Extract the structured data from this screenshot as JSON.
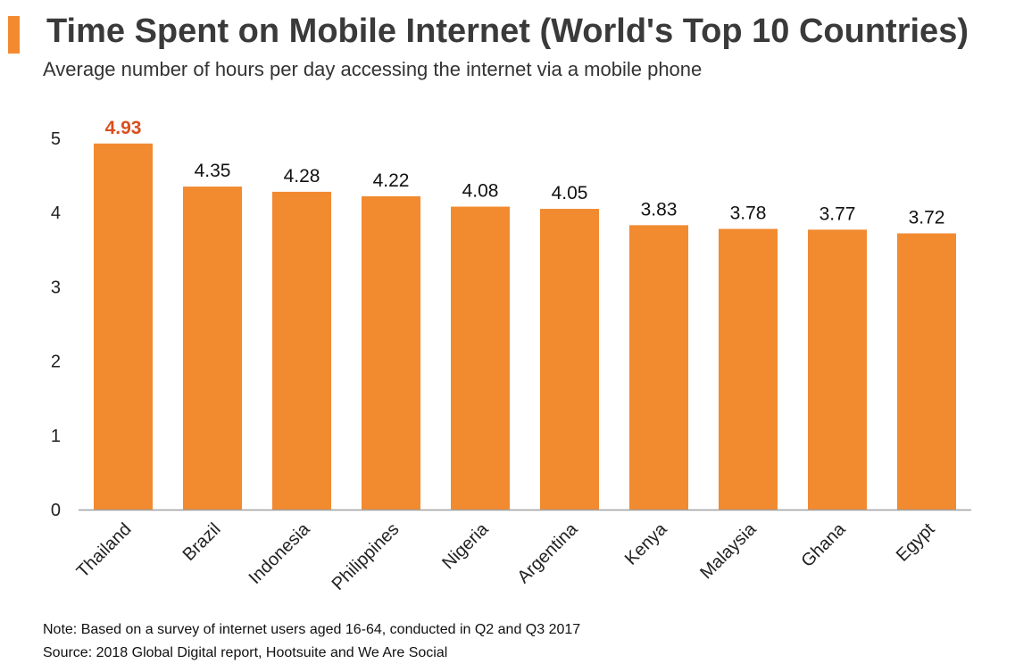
{
  "header": {
    "title": "Time Spent on Mobile Internet (World's Top 10 Countries)",
    "subtitle": "Average number of hours per day accessing the internet via a mobile phone"
  },
  "colors": {
    "accent": "#f28a30",
    "highlight_label": "#d9501e",
    "axis": "#a0a0a0"
  },
  "chart_data": {
    "type": "bar",
    "title": "Time Spent on Mobile Internet (World's Top 10 Countries)",
    "subtitle": "Average number of hours per day accessing the internet via a mobile phone",
    "xlabel": "",
    "ylabel": "",
    "ylim": [
      0,
      5
    ],
    "yticks": [
      "0",
      "1",
      "2",
      "3",
      "4",
      "5"
    ],
    "grid": false,
    "categories": [
      "Thailand",
      "Brazil",
      "Indonesia",
      "Philippines",
      "Nigeria",
      "Argentina",
      "Kenya",
      "Malaysia",
      "Ghana",
      "Egypt"
    ],
    "values": [
      4.93,
      4.35,
      4.28,
      4.22,
      4.08,
      4.05,
      3.83,
      3.78,
      3.77,
      3.72
    ],
    "labels": [
      "4.93",
      "4.35",
      "4.28",
      "4.22",
      "4.08",
      "4.05",
      "3.83",
      "3.78",
      "3.77",
      "3.72"
    ],
    "highlight_index": 0
  },
  "footer": {
    "note": "Note: Based on a survey of internet users aged 16-64, conducted in Q2 and Q3 2017",
    "source": "Source: 2018 Global Digital report, Hootsuite and We Are Social"
  }
}
